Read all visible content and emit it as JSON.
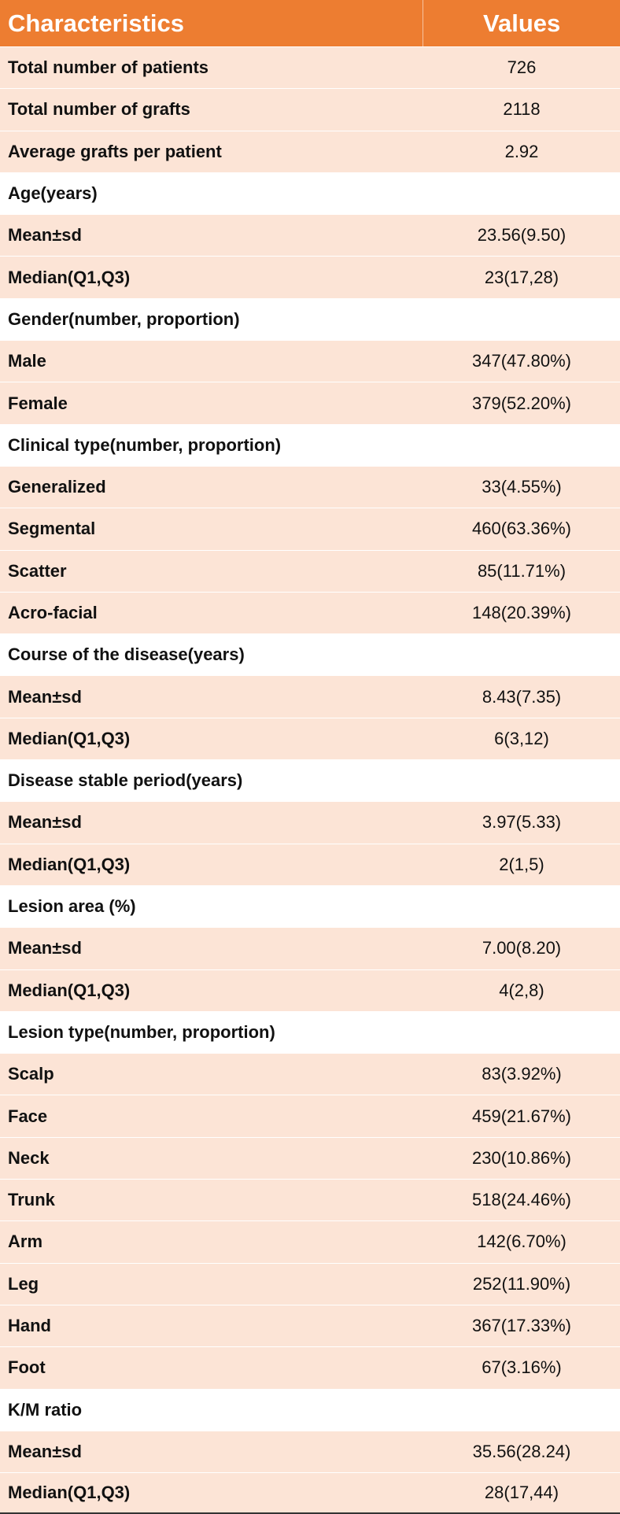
{
  "table": {
    "header": [
      "Characteristics",
      "Values"
    ],
    "rows": [
      [
        "Total number of patients",
        "726"
      ],
      [
        "Total number of grafts",
        "2118"
      ],
      [
        "Average grafts per patient",
        "2.92"
      ],
      [
        "Age(years)"
      ],
      [
        "Mean±sd",
        "23.56(9.50)"
      ],
      [
        "Median(Q1,Q3)",
        "23(17,28)"
      ],
      [
        "Gender(number, proportion)"
      ],
      [
        "Male",
        "347(47.80%)"
      ],
      [
        "Female",
        "379(52.20%)"
      ],
      [
        "Clinical type(number, proportion)"
      ],
      [
        "Generalized",
        "33(4.55%)"
      ],
      [
        "Segmental",
        "460(63.36%)"
      ],
      [
        "Scatter",
        "85(11.71%)"
      ],
      [
        "Acro-facial",
        "148(20.39%)"
      ],
      [
        "Course of the disease(years)"
      ],
      [
        "Mean±sd",
        "8.43(7.35)"
      ],
      [
        "Median(Q1,Q3)",
        "6(3,12)"
      ],
      [
        "Disease stable period(years)"
      ],
      [
        "Mean±sd",
        "3.97(5.33)"
      ],
      [
        "Median(Q1,Q3)",
        "2(1,5)"
      ],
      [
        "Lesion area (%)"
      ],
      [
        "Mean±sd",
        "7.00(8.20)"
      ],
      [
        "Median(Q1,Q3)",
        "4(2,8)"
      ],
      [
        "Lesion type(number, proportion)"
      ],
      [
        "Scalp",
        "83(3.92%)"
      ],
      [
        "Face",
        "459(21.67%)"
      ],
      [
        "Neck",
        "230(10.86%)"
      ],
      [
        "Trunk",
        "518(24.46%)"
      ],
      [
        "Arm",
        "142(6.70%)"
      ],
      [
        "Leg",
        "252(11.90%)"
      ],
      [
        "Hand",
        "367(17.33%)"
      ],
      [
        "Foot",
        "67(3.16%)"
      ],
      [
        "K/M ratio"
      ],
      [
        "Mean±sd",
        "35.56(28.24)"
      ],
      [
        "Median(Q1,Q3)",
        "28(17,44)"
      ]
    ]
  }
}
